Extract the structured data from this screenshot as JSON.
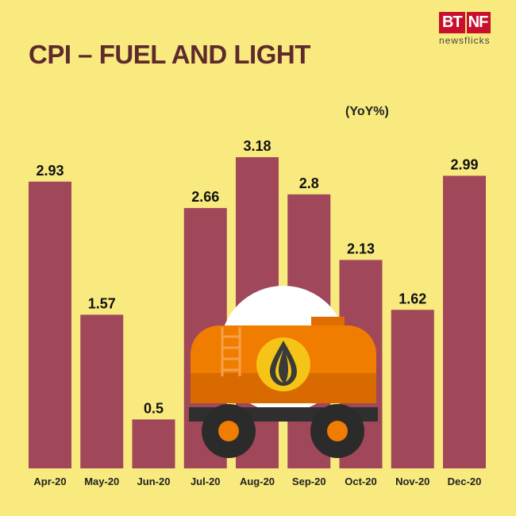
{
  "header": {
    "title": "CPI – FUEL AND LIGHT",
    "unit_label": "(YoY%)"
  },
  "logo": {
    "brand_left": "BT",
    "brand_right": "NF",
    "tagline": "newsflicks"
  },
  "colors": {
    "background": "#f8ea7f",
    "bar": "#a0475a",
    "title": "#5e2a2c",
    "tanker_orange": "#f07c00",
    "tanker_dark": "#d96a00"
  },
  "chart_data": {
    "type": "bar",
    "title": "CPI – FUEL AND LIGHT",
    "ylabel": "(YoY%)",
    "xlabel": "",
    "categories": [
      "Apr-20",
      "May-20",
      "Jun-20",
      "Jul-20",
      "Aug-20",
      "Sep-20",
      "Oct-20",
      "Nov-20",
      "Dec-20"
    ],
    "values": [
      2.93,
      1.57,
      0.5,
      2.66,
      3.18,
      2.8,
      2.13,
      1.62,
      2.99
    ],
    "value_labels": [
      "2.93",
      "1.57",
      "0.5",
      "2.66",
      "3.18",
      "2.8",
      "2.13",
      "1.62",
      "2.99"
    ],
    "ylim": [
      0,
      3.18
    ],
    "grid": false,
    "legend": "none"
  },
  "illustration": {
    "icon": "oil-tanker-icon"
  }
}
